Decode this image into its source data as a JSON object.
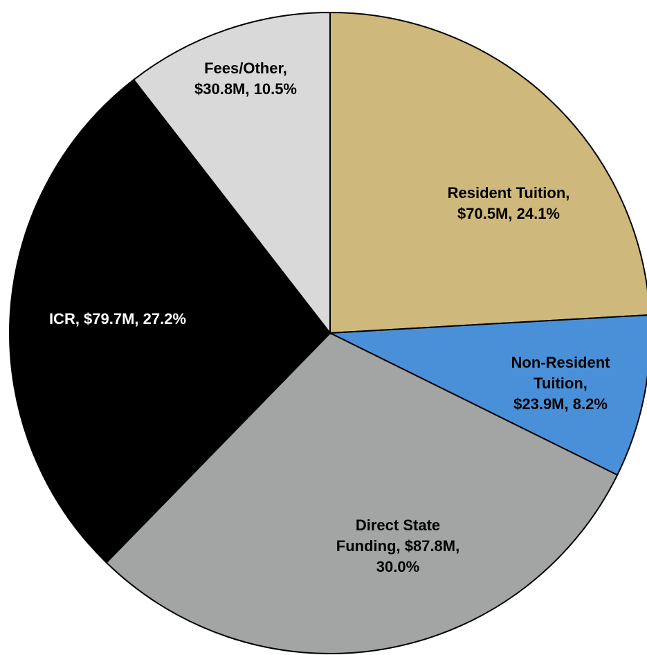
{
  "chart_data": {
    "type": "pie",
    "categories": [
      "Resident Tuition",
      "Non-Resident Tuition",
      "Direct State Funding",
      "ICR",
      "Fees/Other"
    ],
    "values": [
      24.1,
      8.2,
      30.0,
      27.2,
      10.5
    ],
    "value_labels": [
      "Resident Tuition, $70.5M, 24.1%",
      "Non-Resident Tuition, $23.9M, 8.2%",
      "Direct State Funding, $87.8M, 30.0%",
      "ICR, $79.7M, 27.2%",
      "Fees/Other, $30.8M, 10.5%"
    ],
    "colors": [
      "#cfb87c",
      "#4a90d9",
      "#a3a4a4",
      "#000000",
      "#d9d9d9"
    ],
    "label_colors": [
      "#000000",
      "#000000",
      "#000000",
      "#ffffff",
      "#000000"
    ]
  }
}
